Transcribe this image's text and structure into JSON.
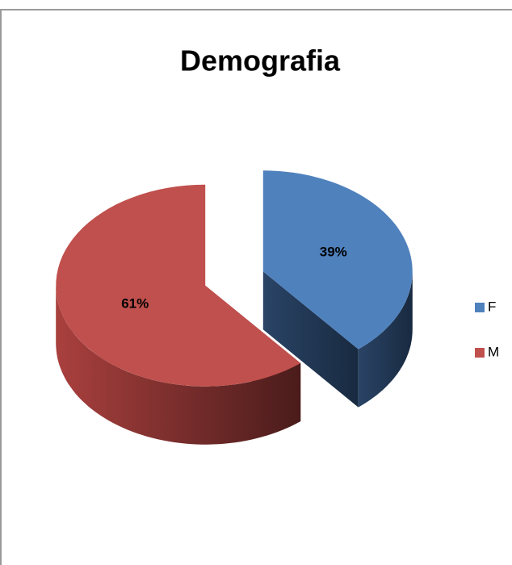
{
  "chart_data": {
    "type": "pie",
    "title": "Demografia",
    "categories": [
      "F",
      "M"
    ],
    "values": [
      39,
      61
    ],
    "value_labels": [
      "39%",
      "61%"
    ],
    "colors": [
      "#4f81bd",
      "#c0504d"
    ],
    "legend": "right"
  }
}
